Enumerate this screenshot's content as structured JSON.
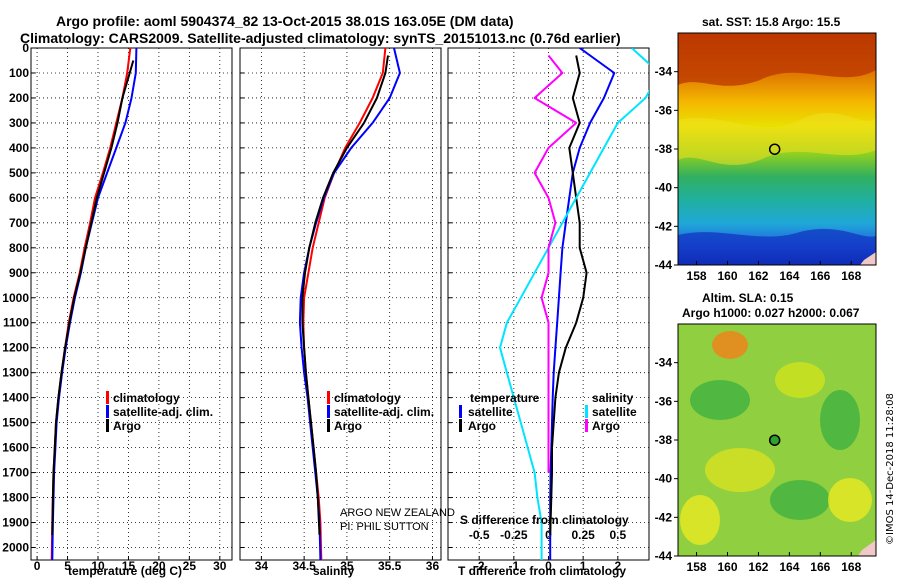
{
  "header": {
    "title_line1": "Argo profile: aoml 5904374_82 13-Oct-2015 38.01S 163.05E (DM data)",
    "title_line2": "Climatology: CARS2009. Satellite-adjusted climatology: synTS_20151013.nc (0.76d earlier)"
  },
  "colors": {
    "climatology": "#ff0000",
    "satellite": "#0000ff",
    "argo": "#000000",
    "sal_satellite": "#00e5ff",
    "sal_argo": "#ff00ff"
  },
  "chart_data": [
    {
      "type": "line",
      "panel": "temperature",
      "xlabel": "temperature (deg C)",
      "ylabel": "",
      "xlim": [
        -1,
        32
      ],
      "ylim": [
        2050,
        0
      ],
      "xticks": [
        0,
        5,
        10,
        15,
        20,
        25,
        30
      ],
      "yticks": [
        0,
        100,
        200,
        300,
        400,
        500,
        600,
        700,
        800,
        900,
        1000,
        1100,
        1200,
        1300,
        1400,
        1500,
        1600,
        1700,
        1800,
        1900,
        2000
      ],
      "legend": [
        "climatology",
        "satellite-adj. clim.",
        "Argo"
      ],
      "series": [
        {
          "name": "climatology",
          "color": "#ff0000",
          "x": [
            15.3,
            14.8,
            14.0,
            13.0,
            12.0,
            10.8,
            9.5,
            8.7,
            7.8,
            7.0,
            6.0,
            5.2,
            4.6,
            4.0,
            3.5,
            3.1,
            2.9,
            2.7,
            2.6,
            2.5,
            2.4
          ],
          "y": [
            0,
            100,
            200,
            300,
            400,
            500,
            600,
            700,
            800,
            900,
            1000,
            1100,
            1200,
            1300,
            1400,
            1500,
            1600,
            1700,
            1800,
            1900,
            2050
          ]
        },
        {
          "name": "satellite-adj. clim.",
          "color": "#0000ff",
          "x": [
            16.3,
            16.2,
            15.5,
            14.5,
            13.0,
            11.5,
            10.0,
            9.0,
            8.0,
            7.2,
            6.2,
            5.4,
            4.7,
            4.1,
            3.6,
            3.2,
            3.0,
            2.8,
            2.7,
            2.6,
            2.5
          ],
          "y": [
            0,
            100,
            200,
            300,
            400,
            500,
            600,
            700,
            800,
            900,
            1000,
            1100,
            1200,
            1300,
            1400,
            1500,
            1600,
            1700,
            1800,
            1900,
            2050
          ]
        },
        {
          "name": "Argo",
          "color": "#000000",
          "x": [
            15.8,
            15.2,
            14.0,
            13.2,
            12.2,
            11.0,
            9.8,
            8.9,
            8.0,
            7.1,
            6.1,
            5.3,
            4.6,
            4.0,
            3.5,
            3.1,
            2.9,
            2.7,
            2.6,
            2.5
          ],
          "y": [
            50,
            100,
            200,
            300,
            400,
            500,
            600,
            700,
            800,
            900,
            1000,
            1100,
            1200,
            1300,
            1400,
            1500,
            1600,
            1700,
            1800,
            1950
          ]
        }
      ]
    },
    {
      "type": "line",
      "panel": "salinity",
      "xlabel": "salinity",
      "ylabel": "",
      "xlim": [
        33.75,
        36.1
      ],
      "ylim": [
        2050,
        0
      ],
      "xticks": [
        34,
        34.5,
        35,
        35.5,
        36
      ],
      "legend": [
        "climatology",
        "satellite-adj. clim.",
        "Argo"
      ],
      "annotation": [
        "ARGO NEW ZEALAND",
        "PI: PHIL SUTTON"
      ],
      "series": [
        {
          "name": "climatology",
          "color": "#ff0000",
          "x": [
            35.45,
            35.42,
            35.3,
            35.15,
            34.98,
            34.85,
            34.74,
            34.67,
            34.6,
            34.55,
            34.5,
            34.49,
            34.5,
            34.52,
            34.55,
            34.58,
            34.61,
            34.64,
            34.67,
            34.69,
            34.7
          ],
          "y": [
            0,
            100,
            200,
            300,
            400,
            500,
            600,
            700,
            800,
            900,
            1000,
            1100,
            1200,
            1300,
            1400,
            1500,
            1600,
            1700,
            1800,
            1900,
            2050
          ]
        },
        {
          "name": "satellite-adj. clim.",
          "color": "#0000ff",
          "x": [
            35.55,
            35.62,
            35.5,
            35.3,
            35.05,
            34.85,
            34.73,
            34.64,
            34.56,
            34.5,
            34.46,
            34.45,
            34.47,
            34.5,
            34.54,
            34.57,
            34.6,
            34.63,
            34.66,
            34.68,
            34.69
          ],
          "y": [
            0,
            100,
            200,
            300,
            400,
            500,
            600,
            700,
            800,
            900,
            1000,
            1100,
            1200,
            1300,
            1400,
            1500,
            1600,
            1700,
            1800,
            1900,
            2050
          ]
        },
        {
          "name": "Argo",
          "color": "#000000",
          "x": [
            35.48,
            35.45,
            35.35,
            35.2,
            35.0,
            34.84,
            34.72,
            34.63,
            34.56,
            34.51,
            34.48,
            34.48,
            34.5,
            34.52,
            34.55,
            34.58,
            34.61,
            34.64,
            34.66,
            34.68
          ],
          "y": [
            30,
            100,
            200,
            300,
            400,
            500,
            600,
            700,
            800,
            900,
            1000,
            1100,
            1200,
            1300,
            1400,
            1500,
            1600,
            1700,
            1800,
            1950
          ]
        }
      ]
    },
    {
      "type": "line",
      "panel": "difference",
      "xlabel": "T difference from climatology",
      "xlabel_top": "S difference from climatology",
      "xlim": [
        -2.9,
        2.9
      ],
      "ylim": [
        2050,
        0
      ],
      "xticks": [
        -2,
        -1,
        0,
        1,
        2
      ],
      "xticks_top": [
        "-0.5",
        "-0.25",
        "0",
        "0.25",
        "0.5"
      ],
      "legend_temperature_title": "temperature",
      "legend_salinity_title": "salinity",
      "legend_temperature": [
        "satellite",
        "Argo"
      ],
      "legend_salinity": [
        "satellite",
        "Argo"
      ],
      "series": [
        {
          "name": "satellite",
          "group": "temperature",
          "color": "#0000ff",
          "x": [
            0.9,
            1.4,
            1.9,
            1.6,
            1.2,
            0.9,
            0.7,
            0.6,
            0.5,
            0.4,
            0.35,
            0.3,
            0.25,
            0.2,
            0.15,
            0.12,
            0.1,
            0.08,
            0.06,
            0.05,
            0.05
          ],
          "y": [
            0,
            50,
            100,
            200,
            300,
            400,
            500,
            600,
            700,
            800,
            900,
            1000,
            1100,
            1200,
            1300,
            1400,
            1500,
            1600,
            1700,
            1800,
            2050
          ]
        },
        {
          "name": "Argo",
          "group": "temperature",
          "color": "#000000",
          "x": [
            0.8,
            0.9,
            0.7,
            0.9,
            0.6,
            0.7,
            0.8,
            0.9,
            0.9,
            1.1,
            1.0,
            0.8,
            0.5,
            0.3,
            0.2,
            0.15,
            0.1,
            0.1,
            0.08,
            0.05
          ],
          "y": [
            30,
            100,
            200,
            300,
            400,
            500,
            600,
            700,
            800,
            900,
            1000,
            1100,
            1200,
            1300,
            1400,
            1500,
            1600,
            1700,
            1800,
            1950
          ]
        },
        {
          "name": "satellite",
          "group": "salinity",
          "color": "#00e5ff",
          "x": [
            0.6,
            0.8,
            0.7,
            0.5,
            0.4,
            0.3,
            0.2,
            0.1,
            0.0,
            -0.1,
            -0.2,
            -0.3,
            -0.35,
            -0.3,
            -0.25,
            -0.2,
            -0.15,
            -0.1,
            -0.08,
            -0.05,
            -0.05
          ],
          "y": [
            0,
            100,
            200,
            300,
            400,
            500,
            600,
            700,
            800,
            900,
            1000,
            1100,
            1200,
            1300,
            1400,
            1500,
            1600,
            1700,
            1800,
            1900,
            2050
          ]
        },
        {
          "name": "Argo",
          "group": "salinity",
          "color": "#ff00ff",
          "x": [
            0.0,
            0.1,
            -0.1,
            0.2,
            0.0,
            -0.1,
            0.0,
            0.05,
            0.0,
            0.0,
            -0.05,
            0.0,
            0.0,
            0.0,
            0.0,
            0.0,
            0.0,
            0.0
          ],
          "y": [
            30,
            100,
            200,
            300,
            400,
            500,
            600,
            700,
            800,
            900,
            1000,
            1100,
            1200,
            1300,
            1400,
            1500,
            1600,
            1700
          ]
        }
      ]
    },
    {
      "type": "heatmap",
      "panel": "sst_map",
      "title": "sat. SST: 15.8 Argo: 15.5",
      "xlim": [
        156.8,
        169.6
      ],
      "ylim": [
        -44,
        -32
      ],
      "xticks": [
        158,
        160,
        162,
        164,
        166,
        168
      ],
      "yticks": [
        -34,
        -36,
        -38,
        -40,
        -42,
        -44
      ],
      "marker": {
        "lon": 163.05,
        "lat": -38.01
      }
    },
    {
      "type": "heatmap",
      "panel": "sla_map",
      "title_line1": "Altim. SLA: 0.15",
      "title_line2": "Argo h1000: 0.027 h2000: 0.067",
      "xlim": [
        156.8,
        169.6
      ],
      "ylim": [
        -44,
        -32
      ],
      "xticks": [
        158,
        160,
        162,
        164,
        166,
        168
      ],
      "yticks": [
        -34,
        -36,
        -38,
        -40,
        -42,
        -44
      ],
      "marker": {
        "lon": 163.05,
        "lat": -38.01
      }
    }
  ],
  "side_stamp": "©IMOS 14-Dec-2018 11:28:08"
}
